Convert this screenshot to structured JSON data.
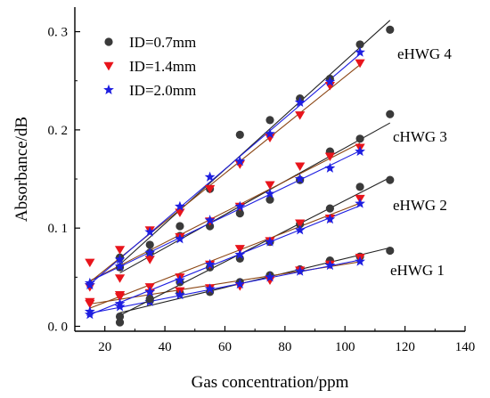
{
  "chart_data": {
    "type": "scatter",
    "xlabel": "Gas concentration/ppm",
    "ylabel": "Absorbance/dB",
    "xlim": [
      10,
      140
    ],
    "ylim": [
      -0.005,
      0.325
    ],
    "xticks": [
      20,
      40,
      60,
      80,
      100,
      120,
      140
    ],
    "yticks": [
      0.0,
      0.1,
      0.2,
      0.3
    ],
    "ytick_labels": [
      "0. 0",
      "0. 1",
      "0. 2",
      "0. 3"
    ],
    "grid": false,
    "legend": {
      "position": "top-left",
      "entries": [
        {
          "name": "ID=0.7mm",
          "color": "#3a3a3a",
          "marker": "circle"
        },
        {
          "name": "ID=1.4mm",
          "color": "#e8141b",
          "marker": "triangle-down"
        },
        {
          "name": "ID=2.0mm",
          "color": "#1e1ee0",
          "marker": "star"
        }
      ]
    },
    "groups": [
      {
        "label": "eHWG 1",
        "series": [
          {
            "name": "ID=0.7mm",
            "x": [
              25,
              35,
              45,
              55,
              65,
              75,
              85,
              95,
              105,
              115
            ],
            "y": [
              0.004,
              0.026,
              0.034,
              0.035,
              0.045,
              0.052,
              0.058,
              0.067,
              0.071,
              0.077
            ]
          },
          {
            "name": "ID=1.4mm",
            "x": [
              15,
              25,
              35,
              45,
              55,
              65,
              75,
              85,
              95,
              105
            ],
            "y": [
              0.025,
              0.03,
              0.034,
              0.036,
              0.039,
              0.041,
              0.047,
              0.057,
              0.063,
              0.07
            ]
          },
          {
            "name": "ID=2.0mm",
            "x": [
              15,
              25,
              35,
              45,
              55,
              65,
              75,
              85,
              95,
              105
            ],
            "y": [
              0.012,
              0.02,
              0.025,
              0.032,
              0.038,
              0.043,
              0.05,
              0.056,
              0.062,
              0.066
            ]
          }
        ]
      },
      {
        "label": "eHWG 2",
        "series": [
          {
            "name": "ID=0.7mm",
            "x": [
              25,
              35,
              45,
              55,
              65,
              75,
              85,
              95,
              105,
              115
            ],
            "y": [
              0.01,
              0.028,
              0.045,
              0.06,
              0.069,
              0.086,
              0.104,
              0.12,
              0.142,
              0.149
            ]
          },
          {
            "name": "ID=1.4mm",
            "x": [
              15,
              25,
              35,
              45,
              55,
              65,
              75,
              85,
              95,
              105
            ],
            "y": [
              0.023,
              0.032,
              0.04,
              0.05,
              0.063,
              0.079,
              0.087,
              0.105,
              0.11,
              0.13
            ]
          },
          {
            "name": "ID=2.0mm",
            "x": [
              15,
              25,
              35,
              45,
              55,
              65,
              75,
              85,
              95,
              105
            ],
            "y": [
              0.015,
              0.023,
              0.035,
              0.047,
              0.063,
              0.073,
              0.086,
              0.098,
              0.109,
              0.125
            ]
          }
        ]
      },
      {
        "label": "cHWG 3",
        "series": [
          {
            "name": "ID=0.7mm",
            "x": [
              25,
              35,
              45,
              55,
              65,
              75,
              85,
              95,
              105,
              115
            ],
            "y": [
              0.06,
              0.075,
              0.092,
              0.102,
              0.115,
              0.129,
              0.149,
              0.178,
              0.191,
              0.216
            ]
          },
          {
            "name": "ID=1.4mm",
            "x": [
              15,
              25,
              35,
              45,
              55,
              65,
              75,
              85,
              95,
              105
            ],
            "y": [
              0.065,
              0.049,
              0.068,
              0.091,
              0.107,
              0.122,
              0.144,
              0.163,
              0.173,
              0.182
            ]
          },
          {
            "name": "ID=2.0mm",
            "x": [
              15,
              25,
              35,
              45,
              55,
              65,
              75,
              85,
              95,
              105
            ],
            "y": [
              0.044,
              0.061,
              0.075,
              0.089,
              0.108,
              0.122,
              0.135,
              0.15,
              0.161,
              0.178
            ]
          }
        ]
      },
      {
        "label": "eHWG 4",
        "series": [
          {
            "name": "ID=0.7mm",
            "x": [
              25,
              35,
              45,
              55,
              65,
              75,
              85,
              95,
              105,
              115
            ],
            "y": [
              0.07,
              0.083,
              0.102,
              0.14,
              0.195,
              0.21,
              0.232,
              0.252,
              0.287,
              0.302
            ]
          },
          {
            "name": "ID=1.4mm",
            "x": [
              15,
              25,
              35,
              45,
              55,
              65,
              75,
              85,
              95,
              105
            ],
            "y": [
              0.04,
              0.078,
              0.098,
              0.116,
              0.14,
              0.165,
              0.192,
              0.215,
              0.245,
              0.268
            ]
          },
          {
            "name": "ID=2.0mm",
            "x": [
              15,
              25,
              35,
              45,
              55,
              65,
              75,
              85,
              95,
              105
            ],
            "y": [
              0.042,
              0.068,
              0.096,
              0.122,
              0.152,
              0.168,
              0.196,
              0.228,
              0.249,
              0.279
            ]
          }
        ]
      }
    ]
  }
}
